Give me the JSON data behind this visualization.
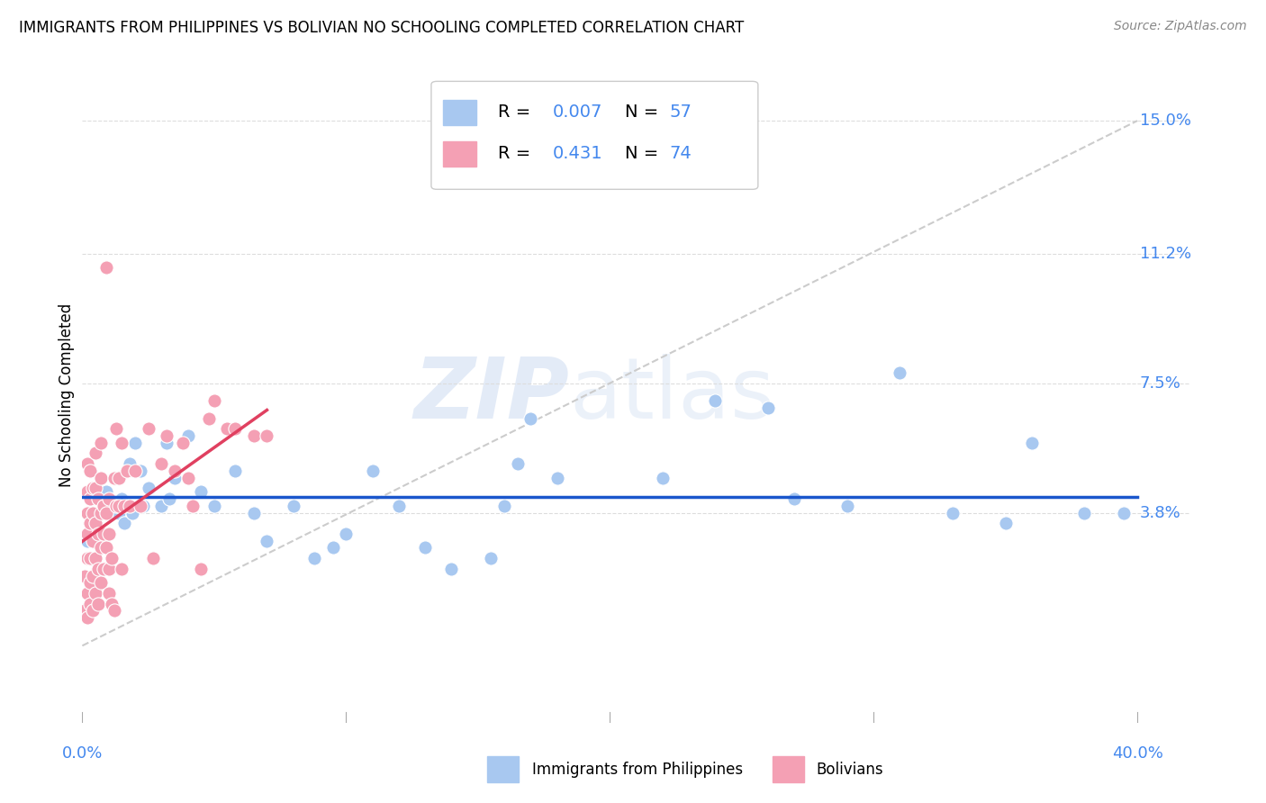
{
  "title": "IMMIGRANTS FROM PHILIPPINES VS BOLIVIAN NO SCHOOLING COMPLETED CORRELATION CHART",
  "source": "Source: ZipAtlas.com",
  "ylabel": "No Schooling Completed",
  "xlim": [
    0.0,
    0.42
  ],
  "ylim": [
    -0.022,
    0.165
  ],
  "plot_xlim": [
    0.0,
    0.4
  ],
  "ytick_vals": [
    0.038,
    0.075,
    0.112,
    0.15
  ],
  "ytick_labels": [
    "3.8%",
    "7.5%",
    "11.2%",
    "15.0%"
  ],
  "blue_color": "#A8C8F0",
  "pink_color": "#F4A0B4",
  "trendline_blue_color": "#1A56CC",
  "trendline_pink_color": "#E04060",
  "diagonal_color": "#CCCCCC",
  "label_color": "#4488EE",
  "grid_color": "#DDDDDD",
  "legend_r_blue": "0.007",
  "legend_n_blue": "57",
  "legend_r_pink": "0.431",
  "legend_n_pink": "74",
  "watermark_zip": "ZIP",
  "watermark_atlas": "atlas",
  "blue_scatter_x": [
    0.002,
    0.003,
    0.004,
    0.005,
    0.006,
    0.007,
    0.008,
    0.009,
    0.01,
    0.011,
    0.012,
    0.013,
    0.014,
    0.015,
    0.016,
    0.017,
    0.018,
    0.019,
    0.02,
    0.022,
    0.023,
    0.025,
    0.03,
    0.032,
    0.033,
    0.035,
    0.04,
    0.042,
    0.045,
    0.05,
    0.058,
    0.065,
    0.07,
    0.08,
    0.088,
    0.095,
    0.1,
    0.11,
    0.12,
    0.13,
    0.14,
    0.155,
    0.16,
    0.165,
    0.17,
    0.18,
    0.22,
    0.24,
    0.26,
    0.27,
    0.29,
    0.31,
    0.33,
    0.35,
    0.36,
    0.38,
    0.395
  ],
  "blue_scatter_y": [
    0.03,
    0.035,
    0.025,
    0.035,
    0.042,
    0.038,
    0.04,
    0.044,
    0.032,
    0.038,
    0.04,
    0.048,
    0.038,
    0.042,
    0.035,
    0.04,
    0.052,
    0.038,
    0.058,
    0.05,
    0.04,
    0.045,
    0.04,
    0.058,
    0.042,
    0.048,
    0.06,
    0.04,
    0.044,
    0.04,
    0.05,
    0.038,
    0.03,
    0.04,
    0.025,
    0.028,
    0.032,
    0.05,
    0.04,
    0.028,
    0.022,
    0.025,
    0.04,
    0.052,
    0.065,
    0.048,
    0.048,
    0.07,
    0.068,
    0.042,
    0.04,
    0.078,
    0.038,
    0.035,
    0.058,
    0.038,
    0.038
  ],
  "pink_scatter_x": [
    0.001,
    0.001,
    0.002,
    0.002,
    0.002,
    0.002,
    0.002,
    0.002,
    0.002,
    0.003,
    0.003,
    0.003,
    0.003,
    0.003,
    0.003,
    0.004,
    0.004,
    0.004,
    0.004,
    0.004,
    0.005,
    0.005,
    0.005,
    0.005,
    0.005,
    0.006,
    0.006,
    0.006,
    0.006,
    0.007,
    0.007,
    0.007,
    0.007,
    0.007,
    0.008,
    0.008,
    0.008,
    0.009,
    0.009,
    0.009,
    0.01,
    0.01,
    0.01,
    0.01,
    0.011,
    0.011,
    0.012,
    0.012,
    0.013,
    0.013,
    0.014,
    0.014,
    0.015,
    0.015,
    0.016,
    0.017,
    0.018,
    0.02,
    0.022,
    0.025,
    0.027,
    0.03,
    0.032,
    0.035,
    0.038,
    0.04,
    0.042,
    0.045,
    0.048,
    0.05,
    0.055,
    0.058,
    0.065,
    0.07
  ],
  "pink_scatter_y": [
    0.01,
    0.02,
    0.008,
    0.015,
    0.025,
    0.032,
    0.038,
    0.044,
    0.052,
    0.012,
    0.018,
    0.025,
    0.035,
    0.042,
    0.05,
    0.01,
    0.02,
    0.03,
    0.038,
    0.045,
    0.015,
    0.025,
    0.035,
    0.045,
    0.055,
    0.012,
    0.022,
    0.032,
    0.042,
    0.018,
    0.028,
    0.038,
    0.048,
    0.058,
    0.022,
    0.032,
    0.04,
    0.028,
    0.038,
    0.108,
    0.015,
    0.022,
    0.032,
    0.042,
    0.012,
    0.025,
    0.01,
    0.048,
    0.04,
    0.062,
    0.04,
    0.048,
    0.022,
    0.058,
    0.04,
    0.05,
    0.04,
    0.05,
    0.04,
    0.062,
    0.025,
    0.052,
    0.06,
    0.05,
    0.058,
    0.048,
    0.04,
    0.022,
    0.065,
    0.07,
    0.062,
    0.062,
    0.06,
    0.06
  ]
}
